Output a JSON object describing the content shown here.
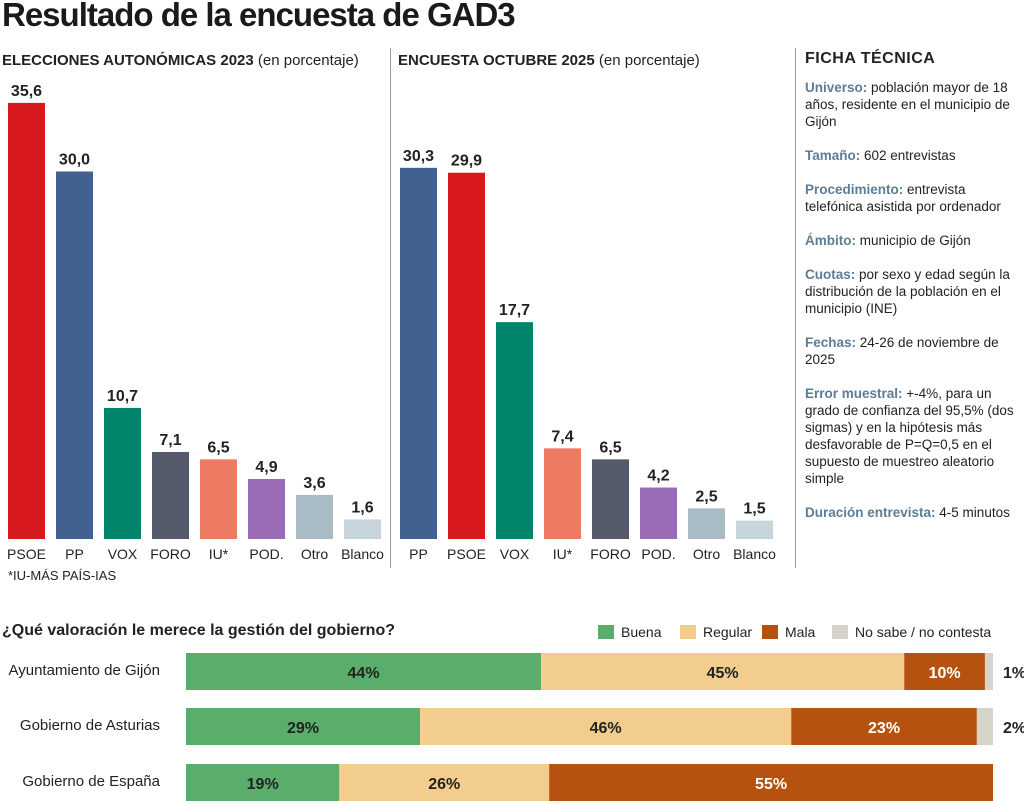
{
  "title": "Resultado de la encuesta de GAD3",
  "chart_data": [
    {
      "type": "bar",
      "title": "ELECCIONES AUTONÓMICAS 2023",
      "subtitle": "(en porcentaje)",
      "categories": [
        "PSOE",
        "PP",
        "VOX",
        "FORO",
        "IU*",
        "POD.",
        "Otro",
        "Blanco"
      ],
      "values": [
        35.6,
        30.0,
        10.7,
        7.1,
        6.5,
        4.9,
        3.6,
        1.6
      ],
      "labels": [
        "35,6",
        "30,0",
        "10,7",
        "7,1",
        "6,5",
        "4,9",
        "3,6",
        "1,6"
      ],
      "colors": [
        "#d7191f",
        "#42618f",
        "#00856a",
        "#555a6b",
        "#ee7a63",
        "#9a6cb6",
        "#a9bcc6",
        "#c8d5dc"
      ],
      "note": "*IU-MÁS PAÍS-IAS"
    },
    {
      "type": "bar",
      "title": "ENCUESTA OCTUBRE 2025",
      "subtitle": "(en porcentaje)",
      "categories": [
        "PP",
        "PSOE",
        "VOX",
        "IU*",
        "FORO",
        "POD.",
        "Otro",
        "Blanco"
      ],
      "values": [
        30.3,
        29.9,
        17.7,
        7.4,
        6.5,
        4.2,
        2.5,
        1.5
      ],
      "labels": [
        "30,3",
        "29,9",
        "17,7",
        "7,4",
        "6,5",
        "4,2",
        "2,5",
        "1,5"
      ],
      "colors": [
        "#42618f",
        "#d7191f",
        "#00856a",
        "#ee7a63",
        "#555a6b",
        "#9a6cb6",
        "#a9bcc6",
        "#c8d5dc"
      ]
    },
    {
      "type": "bar",
      "stacked": true,
      "orientation": "horizontal",
      "title": "¿Qué valoración le merece la gestión del gobierno?",
      "categories": [
        "Ayuntamiento de Gijón",
        "Gobierno de Asturias",
        "Gobierno de España"
      ],
      "series": [
        {
          "name": "Buena",
          "color": "#5aad6a",
          "values": [
            44,
            29,
            19
          ]
        },
        {
          "name": "Regular",
          "color": "#f2cd8e",
          "values": [
            45,
            46,
            26
          ]
        },
        {
          "name": "Mala",
          "color": "#b5520f",
          "values": [
            10,
            23,
            55
          ]
        },
        {
          "name": "No sabe / no contesta",
          "color": "#d6d3c8",
          "values": [
            1,
            2,
            0
          ]
        }
      ],
      "legend": "top-right"
    }
  ],
  "ficha": {
    "title": "FICHA TÉCNICA",
    "items": [
      {
        "k": "Universo:",
        "v": " población mayor de 18 años, residente en el municipio de Gijón"
      },
      {
        "k": "Tamaño:",
        "v": " 602 entrevistas"
      },
      {
        "k": "Procedimiento:",
        "v": " entrevista telefónica asistida por ordenador"
      },
      {
        "k": "Ámbito:",
        "v": " municipio de Gijón"
      },
      {
        "k": "Cuotas:",
        "v": " por sexo y edad según la distribución de la población en el municipio (INE)"
      },
      {
        "k": "Fechas:",
        "v": " 24-26 de noviembre de 2025"
      },
      {
        "k": "Error muestral:",
        "v": " +-4%, para un grado de confianza del 95,5% (dos sigmas) y en la hipótesis más desfavorable de P=Q=0,5 en el supuesto de muestreo aleatorio simple"
      },
      {
        "k": "Duración entrevista:",
        "v": " 4-5 minutos"
      }
    ]
  }
}
